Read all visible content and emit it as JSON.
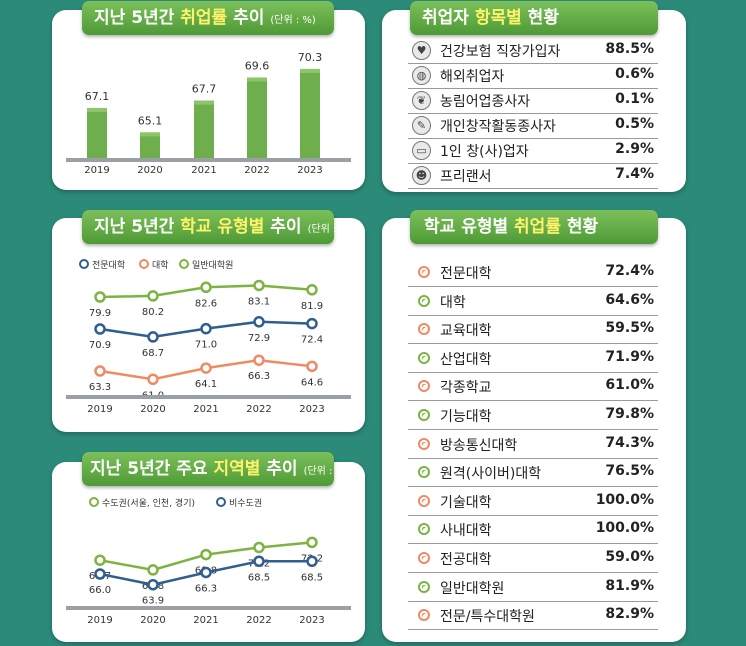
{
  "panels": {
    "rate_trend": {
      "title_pre": "지난 5년간 ",
      "title_hl": "취업률",
      "title_post": " 추이",
      "unit": "(단위 : %)"
    },
    "school_type_trend": {
      "title_pre": "지난 5년간 ",
      "title_hl": "학교 유형별",
      "title_post": " 추이",
      "unit": "(단위 : %)"
    },
    "region_trend": {
      "title_pre": "지난 5년간 주요 ",
      "title_hl": "지역별",
      "title_post": " 추이",
      "unit": "(단위 : %)"
    },
    "by_item": {
      "title_pre": "취업자 ",
      "title_hl": "항목별",
      "title_post": " 현황"
    },
    "by_school": {
      "title_pre": "학교 유형별 ",
      "title_hl": "취업률",
      "title_post": " 현황"
    }
  },
  "chart_data": [
    {
      "type": "bar",
      "categories": [
        "2019",
        "2020",
        "2021",
        "2022",
        "2023"
      ],
      "values": [
        67.1,
        65.1,
        67.7,
        69.6,
        70.3
      ],
      "value_labels": [
        "67.1",
        "65.1",
        "67.7",
        "69.6",
        "70.3"
      ],
      "color": "#6fae4c"
    },
    {
      "type": "line",
      "categories": [
        "2019",
        "2020",
        "2021",
        "2022",
        "2023"
      ],
      "legend": "top-left",
      "series": [
        {
          "name": "전문대학",
          "values": [
            70.9,
            68.7,
            71.0,
            72.9,
            72.4
          ],
          "labels": [
            "70.9",
            "68.7",
            "71.0",
            "72.9",
            "72.4"
          ],
          "color": "#2e5f8f"
        },
        {
          "name": "대학",
          "values": [
            63.3,
            61.0,
            64.1,
            66.3,
            64.6
          ],
          "labels": [
            "63.3",
            "61.0",
            "64.1",
            "66.3",
            "64.6"
          ],
          "color": "#ef8a62"
        },
        {
          "name": "일반대학원",
          "values": [
            79.9,
            80.2,
            82.6,
            83.1,
            81.9
          ],
          "labels": [
            "79.9",
            "80.2",
            "82.6",
            "83.1",
            "81.9"
          ],
          "color": "#7cb342"
        }
      ]
    },
    {
      "type": "line",
      "categories": [
        "2019",
        "2020",
        "2021",
        "2022",
        "2023"
      ],
      "legend": "top-left",
      "series": [
        {
          "name": "수도권(서울, 인천, 경기)",
          "values": [
            68.7,
            66.8,
            69.8,
            71.2,
            72.2
          ],
          "labels": [
            "68.7",
            "66.8",
            "69.8",
            "71.2",
            "72.2"
          ],
          "color": "#7cb342"
        },
        {
          "name": "비수도권",
          "values": [
            66.0,
            63.9,
            66.3,
            68.5,
            68.5
          ],
          "labels": [
            "66.0",
            "63.9",
            "66.3",
            "68.5",
            "68.5"
          ],
          "color": "#2e5f8f"
        }
      ]
    },
    {
      "type": "table",
      "rows": [
        {
          "label": "건강보험 직장가입자",
          "value": "88.5%",
          "icon": "heart-icon"
        },
        {
          "label": "해외취업자",
          "value": "0.6%",
          "icon": "globe-icon"
        },
        {
          "label": "농림어업종사자",
          "value": "0.1%",
          "icon": "leaf-icon"
        },
        {
          "label": "개인창작활동종사자",
          "value": "0.5%",
          "icon": "pencil-icon"
        },
        {
          "label": "1인 창(사)업자",
          "value": "2.9%",
          "icon": "laptop-icon"
        },
        {
          "label": "프리랜서",
          "value": "7.4%",
          "icon": "people-icon"
        }
      ]
    },
    {
      "type": "table",
      "rows": [
        {
          "label": "전문대학",
          "value": "72.4%",
          "dot": "#ef8a62"
        },
        {
          "label": "대학",
          "value": "64.6%",
          "dot": "#7cb342"
        },
        {
          "label": "교육대학",
          "value": "59.5%",
          "dot": "#ef8a62"
        },
        {
          "label": "산업대학",
          "value": "71.9%",
          "dot": "#7cb342"
        },
        {
          "label": "각종학교",
          "value": "61.0%",
          "dot": "#ef8a62"
        },
        {
          "label": "기능대학",
          "value": "79.8%",
          "dot": "#7cb342"
        },
        {
          "label": "방송통신대학",
          "value": "74.3%",
          "dot": "#ef8a62"
        },
        {
          "label": "원격(사이버)대학",
          "value": "76.5%",
          "dot": "#7cb342"
        },
        {
          "label": "기술대학",
          "value": "100.0%",
          "dot": "#ef8a62"
        },
        {
          "label": "사내대학",
          "value": "100.0%",
          "dot": "#7cb342"
        },
        {
          "label": "전공대학",
          "value": "59.0%",
          "dot": "#ef8a62"
        },
        {
          "label": "일반대학원",
          "value": "81.9%",
          "dot": "#7cb342"
        },
        {
          "label": "전문/특수대학원",
          "value": "82.9%",
          "dot": "#ef8a62"
        }
      ]
    }
  ]
}
